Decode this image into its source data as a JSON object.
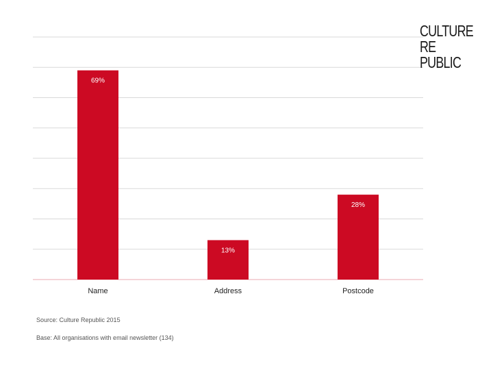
{
  "logo": {
    "line1": "CULTURE",
    "line2": "RE",
    "line3": "PUBLIC"
  },
  "chart_data": {
    "type": "bar",
    "categories": [
      "Name",
      "Address",
      "Postcode"
    ],
    "values": [
      69,
      13,
      28
    ],
    "value_labels": [
      "69%",
      "13%",
      "28%"
    ],
    "ylim": [
      0,
      80
    ],
    "grid": true,
    "bar_color": "#cc0a23",
    "title": "",
    "xlabel": "",
    "ylabel": ""
  },
  "footnotes": {
    "source": "Source: Culture Republic 2015",
    "base": "Base: All organisations with email newsletter (134)"
  }
}
